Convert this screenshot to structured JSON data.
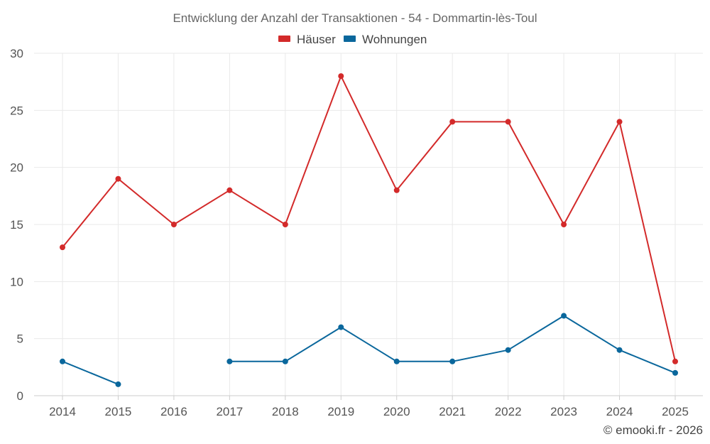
{
  "chart_data": {
    "type": "line",
    "title": "Entwicklung der Anzahl der Transaktionen - 54 - Dommartin-lès-Toul",
    "categories": [
      "2014",
      "2015",
      "2016",
      "2017",
      "2018",
      "2019",
      "2020",
      "2021",
      "2022",
      "2023",
      "2024",
      "2025"
    ],
    "series": [
      {
        "name": "Häuser",
        "color": "#d32a2a",
        "values": [
          13,
          19,
          15,
          18,
          15,
          28,
          18,
          24,
          24,
          15,
          24,
          3
        ]
      },
      {
        "name": "Wohnungen",
        "color": "#0a679c",
        "values": [
          3,
          1,
          null,
          3,
          3,
          6,
          3,
          3,
          4,
          7,
          4,
          2
        ]
      }
    ],
    "ylim": [
      0,
      30
    ],
    "yticks": [
      0,
      5,
      10,
      15,
      20,
      25,
      30
    ],
    "xlabel": "",
    "ylabel": "",
    "grid": true,
    "legend": "top-center"
  },
  "credit": "© emooki.fr - 2026"
}
